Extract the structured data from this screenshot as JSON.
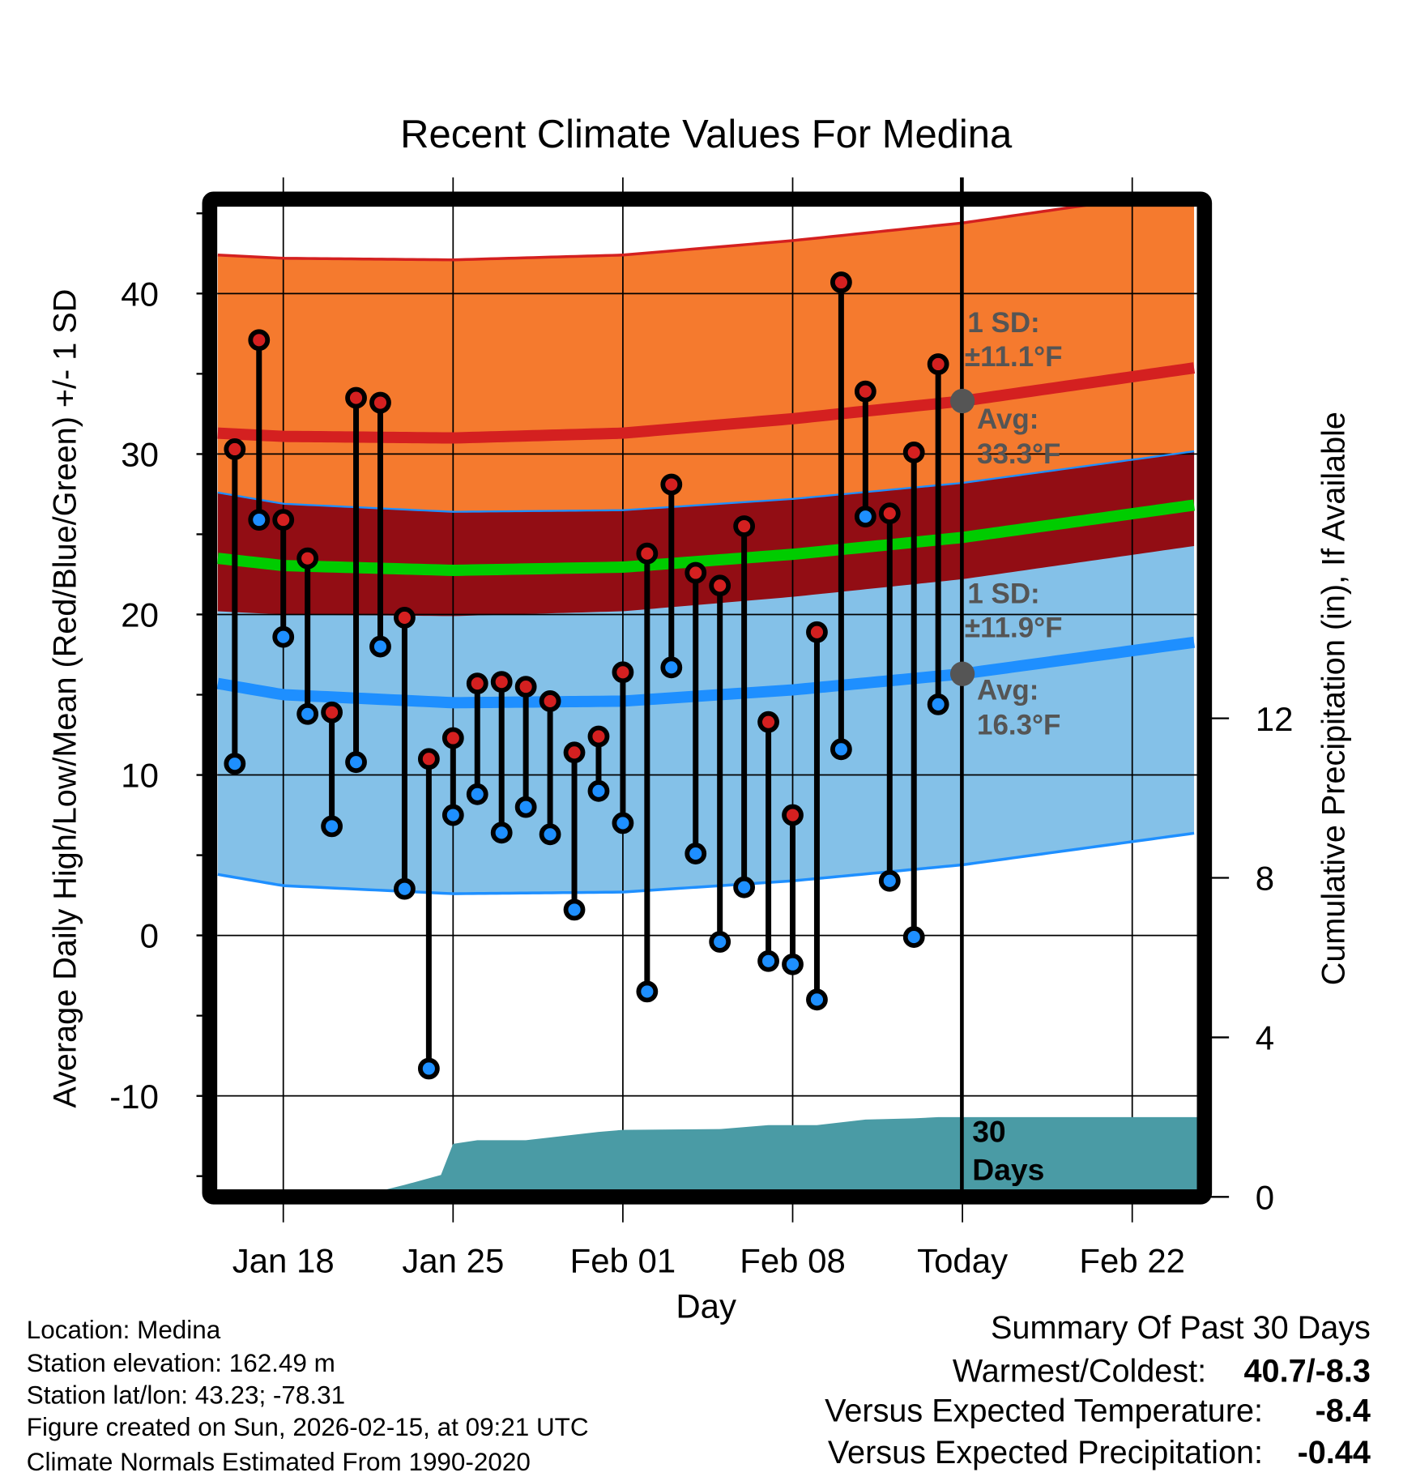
{
  "chart_data": {
    "type": "line",
    "title": "Recent Climate Values For Medina",
    "xlabel": "Day",
    "ylabel": "Average Daily High/Low/Mean (Red/Blue/Green) +/- 1 SD",
    "y2label": "Cumulative Precipitation (in), If Available",
    "ylim": [
      -15.8,
      45.5
    ],
    "y2lim": [
      0,
      14.5
    ],
    "yticks": [
      -10,
      0,
      10,
      20,
      30,
      40
    ],
    "y2ticks": [
      0,
      4,
      8,
      12
    ],
    "xticks": [
      {
        "day": 0,
        "label": "Jan 18"
      },
      {
        "day": 7,
        "label": "Jan 25"
      },
      {
        "day": 14,
        "label": "Feb 01"
      },
      {
        "day": 21,
        "label": "Feb 08"
      },
      {
        "day": 28,
        "label": "Today"
      },
      {
        "day": 35,
        "label": "Feb 22"
      }
    ],
    "xlim_days_from_jan18": [
      -2.7,
      37.7
    ],
    "today_day": 28,
    "daily": {
      "dates": [
        "Jan 16",
        "Jan 17",
        "Jan 18",
        "Jan 19",
        "Jan 20",
        "Jan 21",
        "Jan 22",
        "Jan 23",
        "Jan 24",
        "Jan 25",
        "Jan 26",
        "Jan 27",
        "Jan 28",
        "Jan 29",
        "Jan 30",
        "Jan 31",
        "Feb 01",
        "Feb 02",
        "Feb 03",
        "Feb 04",
        "Feb 05",
        "Feb 06",
        "Feb 07",
        "Feb 08",
        "Feb 09",
        "Feb 10",
        "Feb 11",
        "Feb 12",
        "Feb 13",
        "Feb 14"
      ],
      "high": [
        30.3,
        37.1,
        25.9,
        23.5,
        13.9,
        33.5,
        33.2,
        19.8,
        11.0,
        12.3,
        15.7,
        15.8,
        15.5,
        14.6,
        11.4,
        12.4,
        16.4,
        23.8,
        28.1,
        22.6,
        21.8,
        25.5,
        13.3,
        7.5,
        18.9,
        40.7,
        33.9,
        26.3,
        30.1,
        35.6
      ],
      "low": [
        10.7,
        25.9,
        18.6,
        13.8,
        6.8,
        10.8,
        18.0,
        2.9,
        -8.3,
        7.5,
        8.8,
        6.4,
        8.0,
        6.3,
        1.6,
        9.0,
        7.0,
        -3.5,
        16.7,
        5.1,
        -0.4,
        3.0,
        -1.6,
        -1.8,
        -4.0,
        11.6,
        26.1,
        3.4,
        -0.1,
        14.4
      ]
    },
    "normals": {
      "days": [
        -2.7,
        0,
        7,
        14,
        21,
        28,
        37.7
      ],
      "high_avg": [
        31.3,
        31.1,
        31.0,
        31.3,
        32.2,
        33.3,
        35.4
      ],
      "high_sd": 11.1,
      "low_avg": [
        15.7,
        15.0,
        14.5,
        14.6,
        15.3,
        16.3,
        18.3
      ],
      "low_sd": 11.9
    },
    "precip": {
      "days": [
        -2.7,
        3.0,
        5.0,
        6.5,
        7.0,
        8.0,
        10.0,
        13.0,
        14.0,
        18.0,
        20.0,
        22.0,
        24.0,
        26.0,
        27.0,
        37.7
      ],
      "cumulative": [
        0,
        0,
        0.3,
        0.55,
        1.33,
        1.42,
        1.42,
        1.63,
        1.68,
        1.7,
        1.8,
        1.8,
        1.94,
        1.97,
        2.0,
        2.0
      ]
    },
    "annotations": {
      "high_sd_label": "1 SD:",
      "high_sd_value": "±11.1°F",
      "high_avg_label": "Avg:",
      "high_avg_value": "33.3°F",
      "low_sd_label": "1 SD:",
      "low_sd_value": "±11.9°F",
      "low_avg_label": "Avg:",
      "low_avg_value": "16.3°F",
      "days_num": "30",
      "days_word": "Days",
      "high_avg_today": 33.3,
      "low_avg_today": 16.3
    },
    "colors": {
      "high_band": "#f57a2e",
      "overlap_band": "#920d14",
      "low_band": "#84c1e8",
      "high_line": "#d42020",
      "low_line": "#1e8fff",
      "mean_line": "#00cc00",
      "precip": "#4a9ba5",
      "annotation": "#555555"
    }
  },
  "footer": {
    "location": "Location: Medina",
    "elevation": "Station elevation: 162.49 m",
    "latlon": "Station lat/lon: 43.23; -78.31",
    "created": "Figure created on Sun, 2026-02-15, at 09:21 UTC",
    "normals": "Climate Normals Estimated From 1990-2020"
  },
  "summary": {
    "title": "Summary Of Past 30 Days",
    "warmest_label": "Warmest/Coldest:",
    "warmest_value": "40.7/-8.3",
    "temp_label": "Versus Expected Temperature:",
    "temp_value": "-8.4",
    "temp_color": "#1e8fff",
    "precip_label": "Versus Expected Precipitation:",
    "precip_value": "-0.44",
    "precip_color": "#a0522d"
  }
}
